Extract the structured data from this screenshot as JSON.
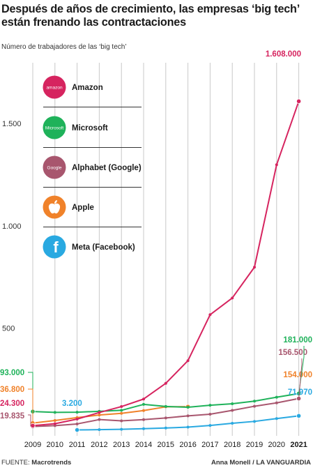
{
  "title": "Después de años de crecimiento, las empresas ‘big tech’ están frenando las contractaciones",
  "subtitle": "Número de trabajadores de las ‘big tech’",
  "footer": {
    "source_label": "FUENTE:",
    "source_name": "Macrotrends",
    "credit": "Anna Monell / LA VANGUARDIA"
  },
  "legend": [
    {
      "name": "Amazon",
      "icon": "amazon-logo-icon",
      "icon_text": "amazon",
      "color": "#d6245f"
    },
    {
      "name": "Microsoft",
      "icon": "microsoft-logo-icon",
      "icon_text": "Microsoft",
      "color": "#1fb25a"
    },
    {
      "name": "Alphabet (Google)",
      "icon": "google-logo-icon",
      "icon_text": "Google",
      "color": "#a8566e"
    },
    {
      "name": "Apple",
      "icon": "apple-logo-icon",
      "icon_text": "",
      "color": "#f0822a"
    },
    {
      "name": "Meta (Facebook)",
      "icon": "facebook-logo-icon",
      "icon_text": "f",
      "color": "#29a9e1"
    }
  ],
  "chart_data": {
    "type": "line",
    "x": [
      2009,
      2010,
      2011,
      2012,
      2013,
      2014,
      2015,
      2016,
      2017,
      2018,
      2019,
      2020,
      2021
    ],
    "x_tick_labels": [
      "2009",
      "2010",
      "2011",
      "2012",
      "2013",
      "2014",
      "2015",
      "2016",
      "2017",
      "2018",
      "2019",
      "2020",
      "2021"
    ],
    "ylabel": "",
    "ylim": [
      0,
      1700
    ],
    "y_unit": "miles",
    "y_ticks": [
      500,
      1000,
      1500
    ],
    "y_tick_labels": [
      "500",
      "1.000",
      "1.500"
    ],
    "grid": "vertical",
    "series": [
      {
        "name": "Amazon",
        "color": "#d6245f",
        "x": [
          2009,
          2010,
          2011,
          2012,
          2013,
          2014,
          2015,
          2016,
          2017,
          2018,
          2019,
          2020,
          2021
        ],
        "values": [
          24.3,
          33.7,
          56.2,
          88.4,
          117.3,
          154.1,
          230.8,
          341.4,
          566,
          647.5,
          798,
          1298,
          1608
        ]
      },
      {
        "name": "Microsoft",
        "color": "#1fb25a",
        "x": [
          2009,
          2010,
          2011,
          2012,
          2013,
          2014,
          2015,
          2016,
          2017,
          2018,
          2019,
          2020,
          2021
        ],
        "values": [
          93,
          89,
          90,
          94,
          99,
          128,
          118,
          114,
          124,
          131,
          144,
          163,
          181
        ]
      },
      {
        "name": "Alphabet (Google)",
        "color": "#a8566e",
        "x": [
          2009,
          2010,
          2011,
          2012,
          2013,
          2014,
          2015,
          2016,
          2017,
          2018,
          2019,
          2020,
          2021
        ],
        "values": [
          19.835,
          24.4,
          32.5,
          53.9,
          47.8,
          53.6,
          61.8,
          72.1,
          80.1,
          98.8,
          118.9,
          135.3,
          156.5
        ]
      },
      {
        "name": "Apple",
        "color": "#f0822a",
        "x": [
          2009,
          2010,
          2011,
          2012,
          2013,
          2014,
          2015,
          2016
        ],
        "values": [
          36.8,
          49.4,
          63.3,
          76.1,
          84.4,
          98,
          116,
          117
        ]
      },
      {
        "name": "Meta (Facebook)",
        "color": "#29a9e1",
        "x": [
          2011,
          2012,
          2013,
          2014,
          2015,
          2016,
          2017,
          2018,
          2019,
          2020,
          2021
        ],
        "values": [
          3.2,
          4.6,
          6.3,
          9.2,
          12.7,
          17,
          25.1,
          35.6,
          44.9,
          58.6,
          71.97
        ]
      }
    ],
    "annotations": [
      {
        "series": "Amazon",
        "year": 2009,
        "text": "24.300"
      },
      {
        "series": "Amazon",
        "year": 2021,
        "text": "1.608.000"
      },
      {
        "series": "Microsoft",
        "year": 2009,
        "text": "93.000"
      },
      {
        "series": "Microsoft",
        "year": 2021,
        "text": "181.000"
      },
      {
        "series": "Alphabet (Google)",
        "year": 2009,
        "text": "19.835"
      },
      {
        "series": "Alphabet (Google)",
        "year": 2021,
        "text": "156.500"
      },
      {
        "series": "Apple",
        "year": 2009,
        "text": "36.800"
      },
      {
        "series": "Apple",
        "year": 2021,
        "text": "154.000"
      },
      {
        "series": "Meta (Facebook)",
        "year": 2011,
        "text": "3.200"
      },
      {
        "series": "Meta (Facebook)",
        "year": 2021,
        "text": "71.970"
      }
    ]
  }
}
